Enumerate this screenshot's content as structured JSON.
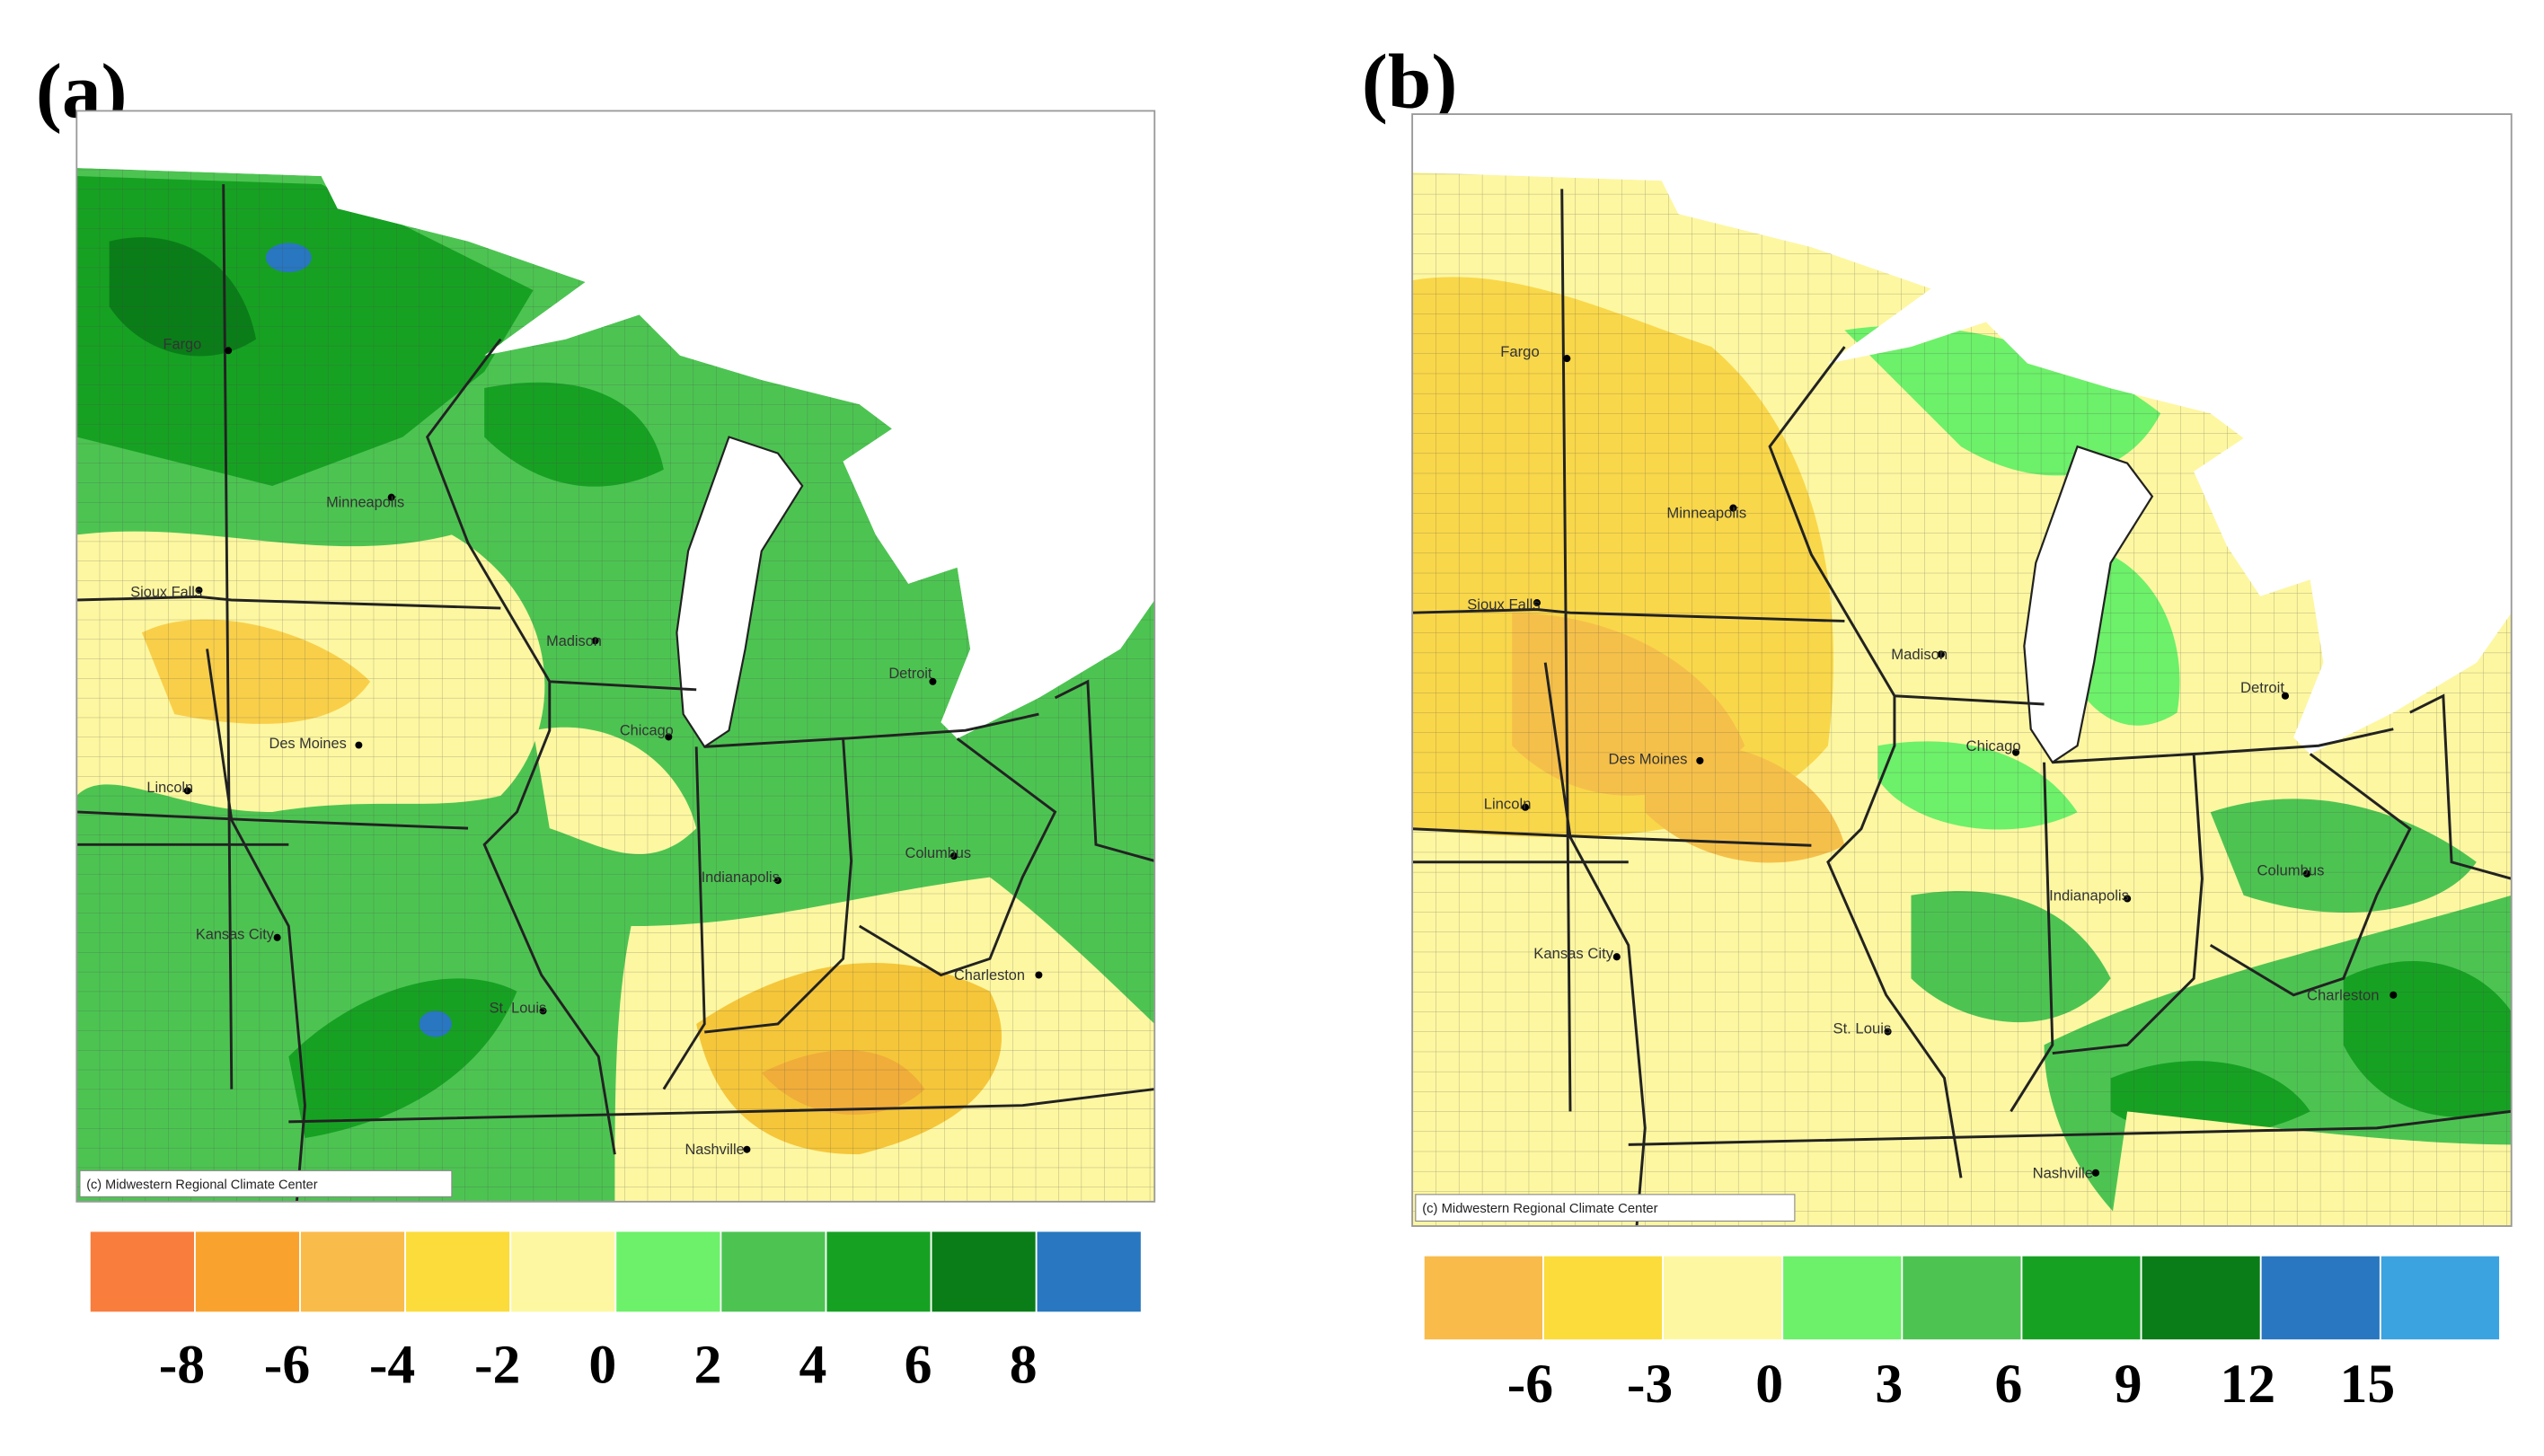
{
  "panels": [
    {
      "label": "(a)",
      "cities": [
        "Fargo",
        "Minneapolis",
        "Sioux Falls",
        "Des Moines",
        "Lincoln",
        "Kansas City",
        "St. Louis",
        "Madison",
        "Chicago",
        "Detroit",
        "Indianapolis",
        "Columbus",
        "Charleston",
        "Nashville"
      ],
      "credit": "(c) Midwestern Regional Climate Center",
      "legend": {
        "colors": [
          "#f97d3c",
          "#f9a32e",
          "#f9bb4a",
          "#fbdc3a",
          "#fdf7a1",
          "#6df06a",
          "#4dc452",
          "#17a123",
          "#0a7d18",
          "#2877c0"
        ],
        "ticks": [
          -8,
          -6,
          -4,
          -2,
          0,
          2,
          4,
          6,
          8
        ]
      }
    },
    {
      "label": "(b)",
      "cities": [
        "Fargo",
        "Minneapolis",
        "Sioux Falls",
        "Des Moines",
        "Lincoln",
        "Kansas City",
        "St. Louis",
        "Madison",
        "Chicago",
        "Detroit",
        "Indianapolis",
        "Columbus",
        "Charleston",
        "Nashville"
      ],
      "credit": "(c) Midwestern Regional Climate Center",
      "legend": {
        "colors": [
          "#f9bb4a",
          "#fbdc3a",
          "#fdf7a1",
          "#6df06a",
          "#4dc452",
          "#17a123",
          "#0a7d18",
          "#2877c0",
          "#3aa3e0"
        ],
        "ticks": [
          -6,
          -3,
          0,
          3,
          6,
          9,
          12,
          15
        ]
      }
    }
  ]
}
